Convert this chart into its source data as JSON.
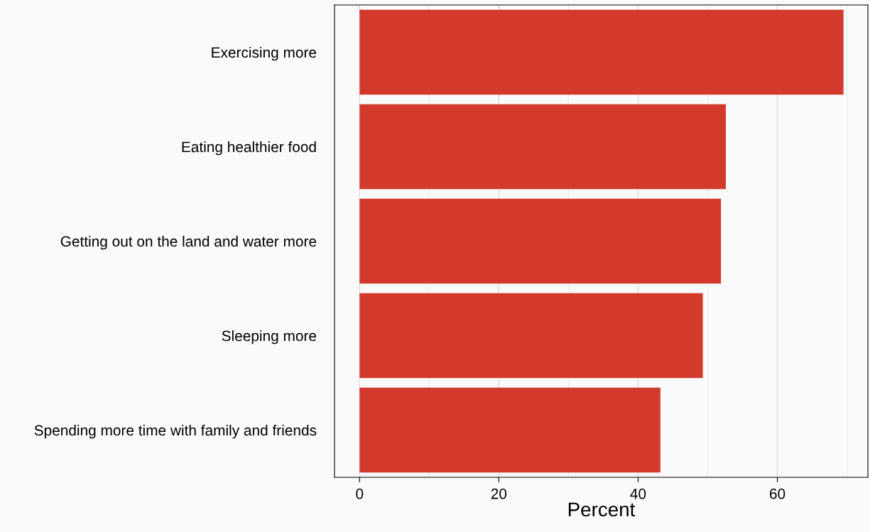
{
  "chart_data": {
    "type": "bar",
    "orientation": "horizontal",
    "xlabel": "Percent",
    "categories": [
      "Exercising more",
      "Eating healthier food",
      "Getting out on the land and water more",
      "Sleeping more",
      "Spending more time with family and friends"
    ],
    "values": [
      69.5,
      52.6,
      51.9,
      49.3,
      43.2
    ],
    "color": "#d33a2c",
    "xlim": [
      -3.6,
      73
    ],
    "xticks": [
      0,
      {
        "value": 10,
        "label": null
      },
      20,
      {
        "value": 30,
        "label": null
      },
      40,
      {
        "value": 50,
        "label": null
      },
      60,
      {
        "value": 70,
        "label": null
      }
    ],
    "grid": "x"
  }
}
